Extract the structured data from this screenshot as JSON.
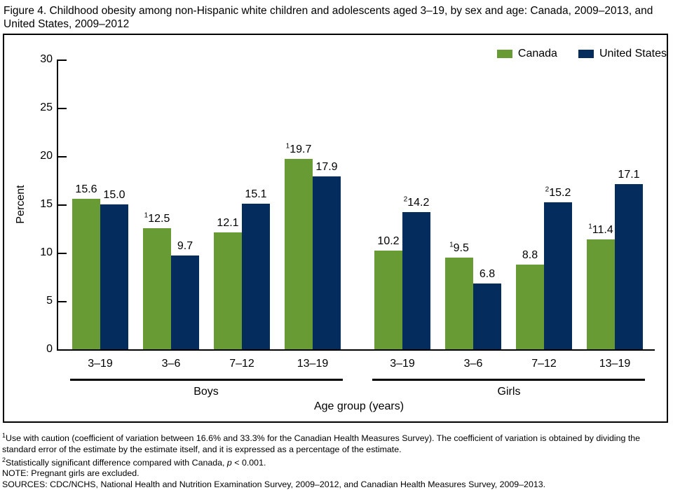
{
  "title": "Figure 4. Childhood obesity among non-Hispanic white children and adolescents aged 3–19, by sex and age: Canada, 2009–2013, and United States, 2009–2012",
  "chart_data": {
    "type": "bar",
    "title": "Figure 4. Childhood obesity among non-Hispanic white children and adolescents aged 3–19, by sex and age: Canada, 2009–2013, and United States, 2009–2012",
    "ylabel": "Percent",
    "xlabel": "Age group (years)",
    "ylim": [
      0,
      30
    ],
    "yticks": [
      0,
      5,
      10,
      15,
      20,
      25,
      30
    ],
    "grid": false,
    "legend_position": "top-right",
    "legend": [
      {
        "name": "Canada",
        "color": "#699B35"
      },
      {
        "name": "United States",
        "color": "#042D5E"
      }
    ],
    "groups": [
      {
        "label": "Boys",
        "categories": [
          "3–19",
          "3–6",
          "7–12",
          "13–19"
        ],
        "series": [
          {
            "name": "Canada",
            "values": [
              15.6,
              12.5,
              12.1,
              19.7
            ],
            "flags": [
              "",
              "1",
              "",
              "1"
            ]
          },
          {
            "name": "United States",
            "values": [
              15.0,
              9.7,
              15.1,
              17.9
            ],
            "flags": [
              "",
              "",
              "",
              ""
            ]
          }
        ]
      },
      {
        "label": "Girls",
        "categories": [
          "3–19",
          "3–6",
          "7–12",
          "13–19"
        ],
        "series": [
          {
            "name": "Canada",
            "values": [
              10.2,
              9.5,
              8.8,
              11.4
            ],
            "flags": [
              "",
              "1",
              "",
              "1"
            ]
          },
          {
            "name": "United States",
            "values": [
              14.2,
              6.8,
              15.2,
              17.1
            ],
            "flags": [
              "2",
              "",
              "2",
              ""
            ]
          }
        ]
      }
    ]
  },
  "footnotes": [
    {
      "sup": "1",
      "text": "Use with caution (coefficient of variation between 16.6% and 33.3% for the Canadian Health Measures Survey). The coefficient of variation is obtained by dividing the standard error of the estimate by the estimate itself, and it is expressed as a percentage of the estimate."
    },
    {
      "sup": "2",
      "text": "Statistically significant difference compared with Canada, ",
      "italic": "p",
      "text_after": " < 0.001."
    },
    {
      "text": "NOTE: Pregnant girls are excluded."
    },
    {
      "text": "SOURCES:  CDC/NCHS, National Health and Nutrition Examination Survey, 2009–2012, and Canadian Health Measures Survey, 2009–2013."
    }
  ]
}
